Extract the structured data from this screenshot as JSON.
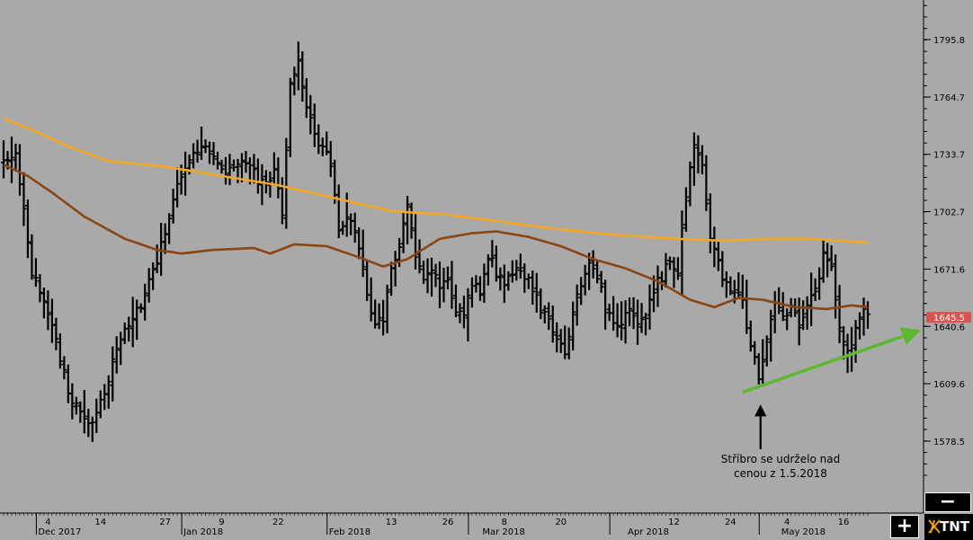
{
  "chart_data": {
    "type": "ohlc",
    "title": "",
    "xlabel": "",
    "ylabel": "",
    "ylim": [
      1550,
      1825
    ],
    "y_ticks": [
      1795.8,
      1764.7,
      1733.7,
      1702.7,
      1671.6,
      1640.6,
      1609.6,
      1578.5
    ],
    "y_tick_labels": [
      "1795.8",
      "1764.7",
      "1733.7",
      "1702.7",
      "1671.6",
      "1640.6",
      "1609.6",
      "1578.5"
    ],
    "last_price": 1645.5,
    "last_price_label": "1645.5",
    "last_price_color": "#d9534f",
    "x_ticks": [
      {
        "bar": 11,
        "label": "4"
      },
      {
        "bar": 24,
        "label": "14"
      },
      {
        "bar": 40,
        "label": "27"
      },
      {
        "bar": 54,
        "label": "9"
      },
      {
        "bar": 68,
        "label": "22"
      },
      {
        "bar": 96,
        "label": "13"
      },
      {
        "bar": 110,
        "label": "26"
      },
      {
        "bar": 124,
        "label": "8"
      },
      {
        "bar": 138,
        "label": "20"
      },
      {
        "bar": 166,
        "label": "12"
      },
      {
        "bar": 180,
        "label": "24"
      },
      {
        "bar": 194,
        "label": "4"
      },
      {
        "bar": 208,
        "label": "16"
      }
    ],
    "month_labels": [
      {
        "bar": 9,
        "label": "Dec 2017"
      },
      {
        "bar": 45,
        "label": "Jan 2018"
      },
      {
        "bar": 81,
        "label": "Feb 2018"
      },
      {
        "bar": 119,
        "label": "Mar 2018"
      },
      {
        "bar": 155,
        "label": "Apr 2018"
      },
      {
        "bar": 193,
        "label": "May 2018"
      }
    ],
    "month_dividers": [
      9,
      45,
      81,
      116,
      151,
      188
    ],
    "bar_count": 215,
    "close_anchors": [
      [
        0,
        1728
      ],
      [
        3,
        1732
      ],
      [
        5,
        1707
      ],
      [
        7,
        1670
      ],
      [
        10,
        1652
      ],
      [
        13,
        1635
      ],
      [
        16,
        1604
      ],
      [
        19,
        1593
      ],
      [
        22,
        1586
      ],
      [
        25,
        1606
      ],
      [
        28,
        1628
      ],
      [
        31,
        1642
      ],
      [
        34,
        1652
      ],
      [
        37,
        1670
      ],
      [
        40,
        1690
      ],
      [
        43,
        1720
      ],
      [
        46,
        1732
      ],
      [
        49,
        1740
      ],
      [
        52,
        1730
      ],
      [
        55,
        1722
      ],
      [
        58,
        1730
      ],
      [
        61,
        1725
      ],
      [
        64,
        1718
      ],
      [
        67,
        1723
      ],
      [
        69,
        1702
      ],
      [
        71,
        1770
      ],
      [
        73,
        1785
      ],
      [
        75,
        1758
      ],
      [
        78,
        1740
      ],
      [
        81,
        1730
      ],
      [
        83,
        1695
      ],
      [
        86,
        1700
      ],
      [
        88,
        1680
      ],
      [
        90,
        1660
      ],
      [
        92,
        1640
      ],
      [
        94,
        1645
      ],
      [
        96,
        1672
      ],
      [
        98,
        1683
      ],
      [
        100,
        1705
      ],
      [
        102,
        1680
      ],
      [
        104,
        1668
      ],
      [
        106,
        1672
      ],
      [
        108,
        1660
      ],
      [
        110,
        1668
      ],
      [
        112,
        1648
      ],
      [
        114,
        1645
      ],
      [
        116,
        1664
      ],
      [
        118,
        1660
      ],
      [
        120,
        1680
      ],
      [
        122,
        1670
      ],
      [
        124,
        1662
      ],
      [
        127,
        1674
      ],
      [
        129,
        1668
      ],
      [
        131,
        1662
      ],
      [
        133,
        1648
      ],
      [
        135,
        1645
      ],
      [
        137,
        1632
      ],
      [
        139,
        1626
      ],
      [
        141,
        1650
      ],
      [
        143,
        1662
      ],
      [
        145,
        1674
      ],
      [
        147,
        1668
      ],
      [
        149,
        1650
      ],
      [
        151,
        1640
      ],
      [
        153,
        1644
      ],
      [
        155,
        1652
      ],
      [
        157,
        1640
      ],
      [
        159,
        1645
      ],
      [
        161,
        1660
      ],
      [
        163,
        1668
      ],
      [
        165,
        1678
      ],
      [
        167,
        1670
      ],
      [
        169,
        1712
      ],
      [
        171,
        1738
      ],
      [
        173,
        1728
      ],
      [
        175,
        1690
      ],
      [
        177,
        1675
      ],
      [
        179,
        1662
      ],
      [
        181,
        1660
      ],
      [
        183,
        1652
      ],
      [
        185,
        1632
      ],
      [
        187,
        1612
      ],
      [
        189,
        1636
      ],
      [
        191,
        1652
      ],
      [
        193,
        1647
      ],
      [
        195,
        1650
      ],
      [
        197,
        1640
      ],
      [
        199,
        1652
      ],
      [
        201,
        1660
      ],
      [
        203,
        1678
      ],
      [
        205,
        1672
      ],
      [
        207,
        1640
      ],
      [
        209,
        1625
      ],
      [
        211,
        1640
      ],
      [
        213,
        1648
      ],
      [
        214,
        1645
      ]
    ],
    "series": [
      {
        "name": "",
        "color": "#f5a623",
        "anchors": [
          [
            0,
            1753
          ],
          [
            8,
            1746
          ],
          [
            16,
            1738
          ],
          [
            26,
            1730
          ],
          [
            40,
            1727
          ],
          [
            54,
            1722
          ],
          [
            68,
            1717
          ],
          [
            82,
            1710
          ],
          [
            96,
            1703
          ],
          [
            110,
            1701
          ],
          [
            124,
            1697
          ],
          [
            138,
            1693
          ],
          [
            152,
            1690
          ],
          [
            166,
            1688
          ],
          [
            178,
            1687
          ],
          [
            190,
            1688
          ],
          [
            200,
            1688
          ],
          [
            214,
            1686
          ]
        ]
      },
      {
        "name": "",
        "color": "#8b4513",
        "anchors": [
          [
            0,
            1728
          ],
          [
            6,
            1722
          ],
          [
            12,
            1713
          ],
          [
            20,
            1700
          ],
          [
            30,
            1688
          ],
          [
            38,
            1682
          ],
          [
            44,
            1680
          ],
          [
            52,
            1682
          ],
          [
            62,
            1683
          ],
          [
            66,
            1680
          ],
          [
            72,
            1685
          ],
          [
            80,
            1684
          ],
          [
            88,
            1678
          ],
          [
            94,
            1673
          ],
          [
            100,
            1677
          ],
          [
            108,
            1688
          ],
          [
            116,
            1691
          ],
          [
            122,
            1692
          ],
          [
            130,
            1689
          ],
          [
            138,
            1684
          ],
          [
            146,
            1677
          ],
          [
            154,
            1672
          ],
          [
            162,
            1665
          ],
          [
            170,
            1655
          ],
          [
            176,
            1651
          ],
          [
            182,
            1656
          ],
          [
            188,
            1655
          ],
          [
            196,
            1651
          ],
          [
            204,
            1650
          ],
          [
            210,
            1652
          ],
          [
            214,
            1651
          ]
        ]
      }
    ],
    "trendline": {
      "color": "#5cb82e",
      "start": [
        183,
        1605
      ],
      "end": [
        214,
        1637
      ]
    },
    "annotation": {
      "lines": [
        "Stříbro se udrželo nad",
        "cenou z 1.5.2018"
      ],
      "arrow_target": [
        187,
        1599
      ]
    }
  },
  "controls": {
    "zoom_out_label": "−",
    "zoom_in_label": "+",
    "logo_text": "TNT"
  }
}
